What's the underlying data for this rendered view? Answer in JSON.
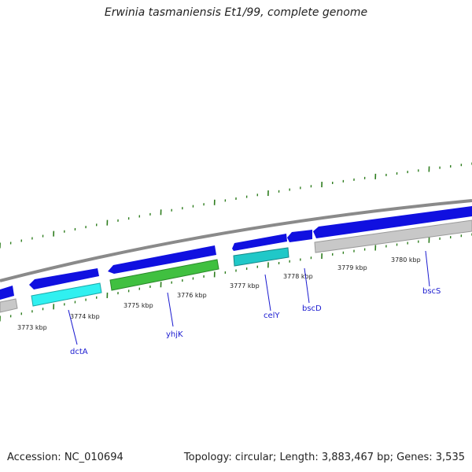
{
  "title": "Erwinia tasmaniensis Et1/99, complete genome",
  "footer": {
    "accession": "Accession: NC_010694",
    "summary": "Topology: circular; Length: 3,883,467 bp; Genes: 3,535"
  },
  "colors": {
    "backbone": "#8a8a8a",
    "tick_green": "#2e7d1e",
    "cds_forward_blue": "#1010e0",
    "cds_reverse_grey": "#c0c0c0",
    "cog_cyan": "#30f0f0",
    "cog_teal": "#20c8c8",
    "cog_green": "#40c040",
    "label_blue": "#1a1ad0"
  },
  "scale_ticks_kbp": [
    "3773 kbp",
    "3774 kbp",
    "3775 kbp",
    "3776 kbp",
    "3777 kbp",
    "3778 kbp",
    "3779 kbp",
    "3780 kbp"
  ],
  "genes": [
    {
      "name": "dctA"
    },
    {
      "name": "yhjK"
    },
    {
      "name": "celY"
    },
    {
      "name": "bscD"
    },
    {
      "name": "bscS"
    }
  ]
}
